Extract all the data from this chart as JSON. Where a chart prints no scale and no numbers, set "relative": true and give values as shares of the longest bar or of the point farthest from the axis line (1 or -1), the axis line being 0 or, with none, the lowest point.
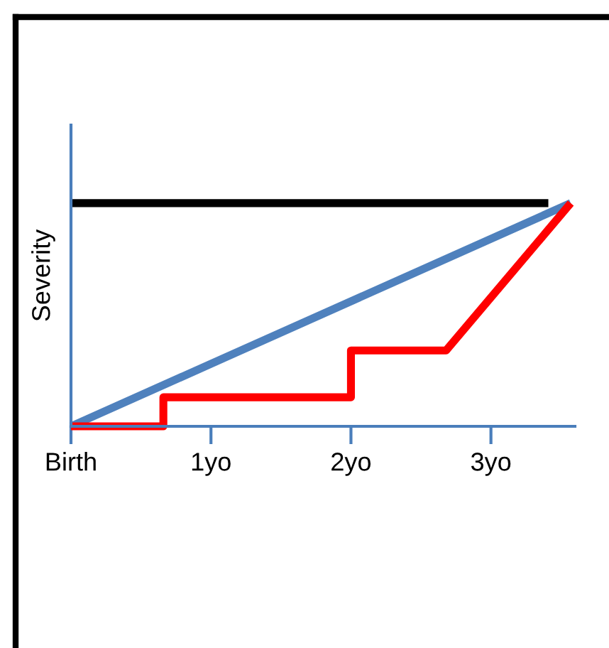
{
  "chart_data": {
    "type": "line",
    "relative": true,
    "ylabel": "Severity",
    "xlim": [
      0,
      3.6
    ],
    "xticks": [
      {
        "value": 0,
        "label": "Birth"
      },
      {
        "value": 1,
        "label": "1yo"
      },
      {
        "value": 2,
        "label": "2yo"
      },
      {
        "value": 3,
        "label": "3yo"
      }
    ],
    "grid": false,
    "legend": false,
    "marker": "none",
    "line_style": "solid",
    "series": [
      {
        "color": "#000000",
        "x": [
          0,
          3.41
        ],
        "values": [
          1,
          1
        ]
      },
      {
        "color": "#4f81bd",
        "x": [
          0,
          3.57
        ],
        "values": [
          0,
          1
        ]
      },
      {
        "color": "#ff0000",
        "x": [
          0,
          0.66,
          0.66,
          2.0,
          2.0,
          2.68,
          3.57
        ],
        "values": [
          0,
          0,
          0.13,
          0.13,
          0.34,
          0.34,
          1
        ]
      }
    ]
  }
}
